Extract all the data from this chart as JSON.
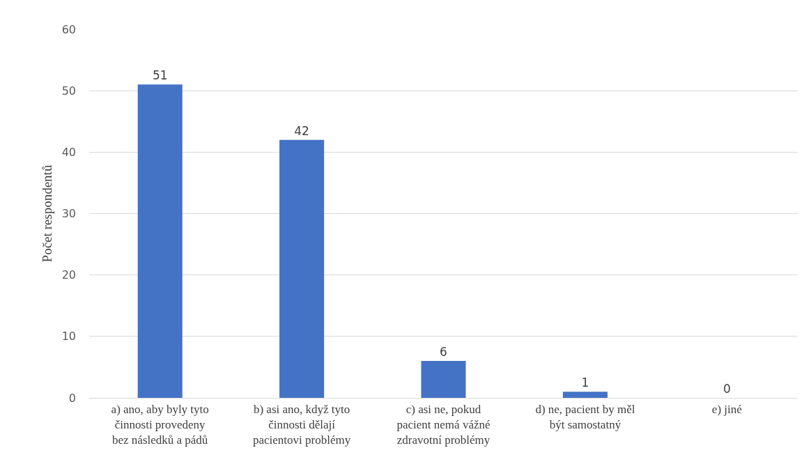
{
  "chart_data": {
    "type": "bar",
    "ylabel": "Počet respondentů",
    "categories": [
      "a) ano, aby byly tyto\nčinnosti provedeny\nbez následků a pádů",
      "b) asi ano, když tyto\nčinnosti dělají\npacientovi problémy",
      "c) asi ne, pokud\npacient nemá vážné\nzdravotní problémy",
      "d) ne, pacient by měl\nbýt samostatný",
      "e) jiné"
    ],
    "values": [
      51,
      42,
      6,
      1,
      0
    ],
    "color": "#4472c4",
    "ylim": [
      0,
      60
    ],
    "yticks": [
      0,
      10,
      20,
      30,
      40,
      50,
      60
    ],
    "grid": "y",
    "data_labels": true
  }
}
